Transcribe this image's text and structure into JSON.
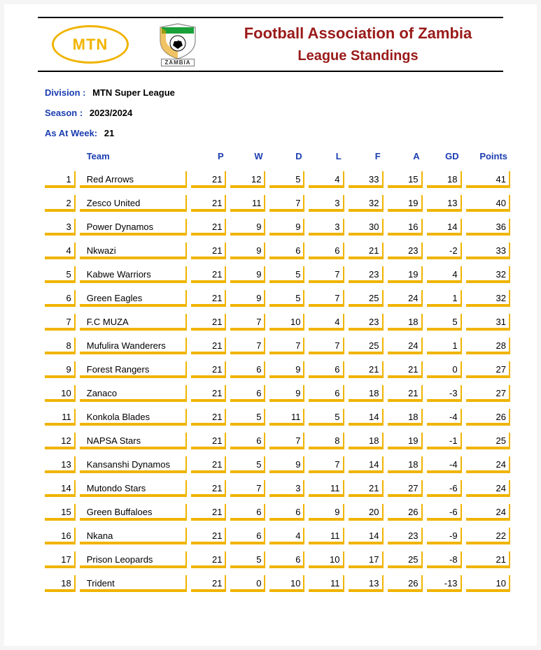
{
  "colors": {
    "accent": "#f0b400",
    "brand_text": "#9a1a1a",
    "label_blue": "#1a3db0",
    "cell_border": "#f0b400",
    "background": "#ffffff"
  },
  "header": {
    "mtn_text": "MTN",
    "faz_label": "ZAMBIA",
    "title_line1": "Football Association of Zambia",
    "title_line2": "League Standings"
  },
  "meta": {
    "division_label": "Division :",
    "division_value": "MTN Super League",
    "season_label": "Season :",
    "season_value": "2023/2024",
    "week_label": "As At Week:",
    "week_value": "21"
  },
  "table": {
    "columns": [
      "",
      "Team",
      "P",
      "W",
      "D",
      "L",
      "F",
      "A",
      "GD",
      "Points"
    ],
    "rows": [
      {
        "rank": 1,
        "team": "Red Arrows",
        "p": 21,
        "w": 12,
        "d": 5,
        "l": 4,
        "f": 33,
        "a": 15,
        "gd": 18,
        "pts": 41
      },
      {
        "rank": 2,
        "team": "Zesco United",
        "p": 21,
        "w": 11,
        "d": 7,
        "l": 3,
        "f": 32,
        "a": 19,
        "gd": 13,
        "pts": 40
      },
      {
        "rank": 3,
        "team": "Power Dynamos",
        "p": 21,
        "w": 9,
        "d": 9,
        "l": 3,
        "f": 30,
        "a": 16,
        "gd": 14,
        "pts": 36
      },
      {
        "rank": 4,
        "team": "Nkwazi",
        "p": 21,
        "w": 9,
        "d": 6,
        "l": 6,
        "f": 21,
        "a": 23,
        "gd": -2,
        "pts": 33
      },
      {
        "rank": 5,
        "team": "Kabwe Warriors",
        "p": 21,
        "w": 9,
        "d": 5,
        "l": 7,
        "f": 23,
        "a": 19,
        "gd": 4,
        "pts": 32
      },
      {
        "rank": 6,
        "team": "Green Eagles",
        "p": 21,
        "w": 9,
        "d": 5,
        "l": 7,
        "f": 25,
        "a": 24,
        "gd": 1,
        "pts": 32
      },
      {
        "rank": 7,
        "team": "F.C MUZA",
        "p": 21,
        "w": 7,
        "d": 10,
        "l": 4,
        "f": 23,
        "a": 18,
        "gd": 5,
        "pts": 31
      },
      {
        "rank": 8,
        "team": "Mufulira Wanderers",
        "p": 21,
        "w": 7,
        "d": 7,
        "l": 7,
        "f": 25,
        "a": 24,
        "gd": 1,
        "pts": 28
      },
      {
        "rank": 9,
        "team": "Forest Rangers",
        "p": 21,
        "w": 6,
        "d": 9,
        "l": 6,
        "f": 21,
        "a": 21,
        "gd": 0,
        "pts": 27
      },
      {
        "rank": 10,
        "team": "Zanaco",
        "p": 21,
        "w": 6,
        "d": 9,
        "l": 6,
        "f": 18,
        "a": 21,
        "gd": -3,
        "pts": 27
      },
      {
        "rank": 11,
        "team": "Konkola Blades",
        "p": 21,
        "w": 5,
        "d": 11,
        "l": 5,
        "f": 14,
        "a": 18,
        "gd": -4,
        "pts": 26
      },
      {
        "rank": 12,
        "team": "NAPSA Stars",
        "p": 21,
        "w": 6,
        "d": 7,
        "l": 8,
        "f": 18,
        "a": 19,
        "gd": -1,
        "pts": 25
      },
      {
        "rank": 13,
        "team": "Kansanshi Dynamos",
        "p": 21,
        "w": 5,
        "d": 9,
        "l": 7,
        "f": 14,
        "a": 18,
        "gd": -4,
        "pts": 24
      },
      {
        "rank": 14,
        "team": "Mutondo Stars",
        "p": 21,
        "w": 7,
        "d": 3,
        "l": 11,
        "f": 21,
        "a": 27,
        "gd": -6,
        "pts": 24
      },
      {
        "rank": 15,
        "team": "Green Buffaloes",
        "p": 21,
        "w": 6,
        "d": 6,
        "l": 9,
        "f": 20,
        "a": 26,
        "gd": -6,
        "pts": 24
      },
      {
        "rank": 16,
        "team": "Nkana",
        "p": 21,
        "w": 6,
        "d": 4,
        "l": 11,
        "f": 14,
        "a": 23,
        "gd": -9,
        "pts": 22
      },
      {
        "rank": 17,
        "team": "Prison Leopards",
        "p": 21,
        "w": 5,
        "d": 6,
        "l": 10,
        "f": 17,
        "a": 25,
        "gd": -8,
        "pts": 21
      },
      {
        "rank": 18,
        "team": "Trident",
        "p": 21,
        "w": 0,
        "d": 10,
        "l": 11,
        "f": 13,
        "a": 26,
        "gd": -13,
        "pts": 10
      }
    ]
  }
}
